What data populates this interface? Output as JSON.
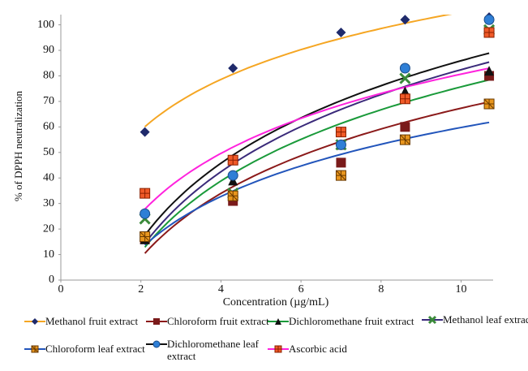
{
  "chart_data": {
    "type": "scatter",
    "trendline": "logarithmic",
    "x_label": "Concentration (µg/mL)",
    "y_label": "% of DPPH neutralization",
    "x": [
      2.1,
      4.3,
      7.0,
      8.6,
      10.7
    ],
    "xlim": [
      0,
      10.8
    ],
    "xticks": [
      0,
      2,
      4,
      6,
      8,
      10
    ],
    "ylim": [
      0,
      104
    ],
    "yticks": [
      0,
      10,
      20,
      30,
      40,
      50,
      60,
      70,
      80,
      90,
      100
    ],
    "series": [
      {
        "name": "Methanol fruit extract",
        "marker": "diamond",
        "color": "#1f2a6b",
        "trend_color": "#f5a623",
        "values": [
          58,
          83,
          97,
          102,
          103
        ]
      },
      {
        "name": "Chloroform fruit extract",
        "marker": "square",
        "color": "#7a1a1a",
        "trend_color": "#8b1a1a",
        "values": [
          16,
          31,
          46,
          60,
          80
        ]
      },
      {
        "name": "Dichloromethane fruit extract",
        "marker": "triangle",
        "color": "#111111",
        "trend_color": "#1a9a3a",
        "values": [
          16,
          39,
          53,
          74,
          82
        ]
      },
      {
        "name": "Methanol leaf extract",
        "marker": "x",
        "color": "#3a8a3a",
        "trend_color": "#3a2a7a",
        "values": [
          24,
          34,
          53,
          79,
          98
        ]
      },
      {
        "name": "Chloroform leaf extract",
        "marker": "asterisk",
        "color": "#e8961e",
        "trend_color": "#2255bb",
        "values": [
          17,
          33,
          41,
          55,
          69
        ]
      },
      {
        "name": "Dichloromethane leaf extract",
        "marker": "circle",
        "color": "#2f7fd6",
        "trend_color": "#111111",
        "values": [
          26,
          41,
          53,
          83,
          102
        ]
      },
      {
        "name": "Ascorbic acid",
        "marker": "square-plus",
        "color": "#f05a28",
        "trend_color": "#ff22dd",
        "values": [
          34,
          47,
          58,
          71,
          97
        ]
      }
    ]
  }
}
